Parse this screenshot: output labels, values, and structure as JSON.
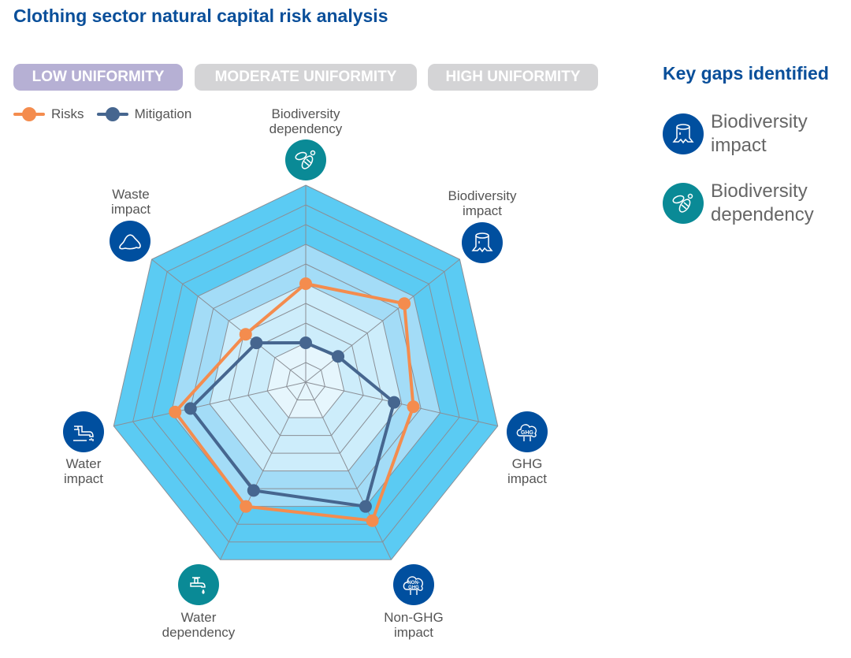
{
  "title": "Clothing sector natural capital risk analysis",
  "uniformity_tabs": [
    {
      "label": "LOW UNIFORMITY",
      "active": true
    },
    {
      "label": "MODERATE UNIFORMITY",
      "active": false
    },
    {
      "label": "HIGH UNIFORMITY",
      "active": false
    }
  ],
  "key_gaps": {
    "title": "Key gaps identified",
    "items": [
      {
        "label_line1": "Biodiversity",
        "label_line2": "impact",
        "icon": "tree-stump-icon",
        "color": "#004f9f"
      },
      {
        "label_line1": "Biodiversity",
        "label_line2": "dependency",
        "icon": "bee-icon",
        "color": "#0a8a96"
      }
    ]
  },
  "axes": [
    {
      "line1": "Biodiversity",
      "line2": "dependency",
      "icon": "bee-icon",
      "kind": "dependency"
    },
    {
      "line1": "Biodiversity",
      "line2": "impact",
      "icon": "tree-stump-icon",
      "kind": "impact"
    },
    {
      "line1": "GHG",
      "line2": "impact",
      "icon": "ghg-cloud-icon",
      "kind": "impact"
    },
    {
      "line1": "Non-GHG",
      "line2": "impact",
      "icon": "non-ghg-cloud-icon",
      "kind": "impact"
    },
    {
      "line1": "Water",
      "line2": "dependency",
      "icon": "water-tap-icon",
      "kind": "dependency"
    },
    {
      "line1": "Water",
      "line2": "impact",
      "icon": "water-pipe-icon",
      "kind": "impact"
    },
    {
      "line1": "Waste",
      "line2": "impact",
      "icon": "waste-pile-icon",
      "kind": "impact"
    }
  ],
  "icon_text": {
    "ghg": "GHG",
    "nonghg1": "NON-",
    "nonghg2": "GHG"
  },
  "chart_data": {
    "type": "radar",
    "categories": [
      "Biodiversity dependency",
      "Biodiversity impact",
      "GHG impact",
      "Non-GHG impact",
      "Water dependency",
      "Water impact",
      "Waste impact"
    ],
    "range": [
      0,
      10
    ],
    "rings": 10,
    "legend_position": "top-left",
    "series": [
      {
        "name": "Risks",
        "color": "#f48c4e",
        "values": [
          5.0,
          6.4,
          5.6,
          7.8,
          7.0,
          6.8,
          3.9
        ]
      },
      {
        "name": "Mitigation",
        "color": "#46668f",
        "values": [
          2.0,
          2.1,
          4.6,
          7.0,
          6.1,
          6.0,
          3.2
        ]
      }
    ]
  }
}
